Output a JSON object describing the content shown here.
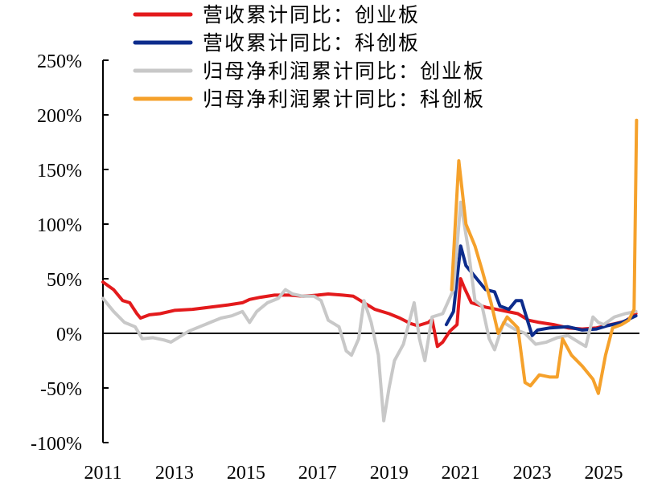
{
  "chart_data": {
    "type": "line",
    "title": "",
    "xlabel": "",
    "ylabel": "",
    "xlim": [
      2011,
      2026
    ],
    "ylim": [
      -100,
      250
    ],
    "y_unit": "%",
    "y_ticks": [
      250,
      200,
      150,
      100,
      50,
      0,
      -50,
      -100
    ],
    "y_tick_labels": [
      "250%",
      "200%",
      "150%",
      "100%",
      "50%",
      "0%",
      "-50%",
      "-100%"
    ],
    "x_ticks": [
      2011,
      2013,
      2015,
      2017,
      2019,
      2021,
      2023,
      2025
    ],
    "x_tick_labels": [
      "2011",
      "2013",
      "2015",
      "2017",
      "2019",
      "2021",
      "2023",
      "2025"
    ],
    "grid": false,
    "legend_position": "top",
    "series": [
      {
        "name": "营收累计同比：创业板",
        "color": "#e31a1c",
        "points": [
          [
            2011,
            47
          ],
          [
            2011.3,
            40
          ],
          [
            2011.55,
            30
          ],
          [
            2011.75,
            28
          ],
          [
            2011.95,
            18
          ],
          [
            2012.05,
            14
          ],
          [
            2012.3,
            17
          ],
          [
            2012.6,
            18
          ],
          [
            2013,
            21
          ],
          [
            2013.5,
            22
          ],
          [
            2014,
            24
          ],
          [
            2014.5,
            26
          ],
          [
            2014.9,
            28
          ],
          [
            2015.1,
            31
          ],
          [
            2015.4,
            33
          ],
          [
            2015.8,
            35
          ],
          [
            2016.2,
            35
          ],
          [
            2016.6,
            34
          ],
          [
            2017,
            35
          ],
          [
            2017.3,
            36
          ],
          [
            2017.7,
            35
          ],
          [
            2018,
            34
          ],
          [
            2018.3,
            28
          ],
          [
            2018.6,
            22
          ],
          [
            2019,
            18
          ],
          [
            2019.3,
            14
          ],
          [
            2019.6,
            9
          ],
          [
            2019.8,
            7
          ],
          [
            2020.1,
            10
          ],
          [
            2020.2,
            13
          ],
          [
            2020.35,
            -12
          ],
          [
            2020.5,
            -8
          ],
          [
            2020.7,
            2
          ],
          [
            2020.9,
            8
          ],
          [
            2021.0,
            50
          ],
          [
            2021.1,
            42
          ],
          [
            2021.3,
            28
          ],
          [
            2021.7,
            24
          ],
          [
            2022,
            22
          ],
          [
            2022.3,
            20
          ],
          [
            2022.6,
            18
          ],
          [
            2022.9,
            12
          ],
          [
            2023.2,
            10
          ],
          [
            2023.6,
            8
          ],
          [
            2024,
            5
          ],
          [
            2024.4,
            4
          ],
          [
            2024.8,
            5
          ],
          [
            2025.2,
            8
          ],
          [
            2025.6,
            11
          ],
          [
            2025.9,
            18
          ]
        ]
      },
      {
        "name": "营收累计同比：科创板",
        "color": "#0d2c8c",
        "points": [
          [
            2020.6,
            8
          ],
          [
            2020.8,
            20
          ],
          [
            2021.0,
            80
          ],
          [
            2021.15,
            62
          ],
          [
            2021.4,
            52
          ],
          [
            2021.7,
            40
          ],
          [
            2021.95,
            38
          ],
          [
            2022.1,
            25
          ],
          [
            2022.35,
            22
          ],
          [
            2022.55,
            30
          ],
          [
            2022.7,
            30
          ],
          [
            2022.85,
            14
          ],
          [
            2023.0,
            -2
          ],
          [
            2023.15,
            3
          ],
          [
            2023.5,
            5
          ],
          [
            2024,
            6
          ],
          [
            2024.4,
            3
          ],
          [
            2024.8,
            4
          ],
          [
            2025.1,
            7
          ],
          [
            2025.5,
            10
          ],
          [
            2025.9,
            16
          ]
        ]
      },
      {
        "name": "归母净利润累计同比：创业板",
        "color": "#c8c8c8",
        "points": [
          [
            2011,
            32
          ],
          [
            2011.3,
            20
          ],
          [
            2011.6,
            10
          ],
          [
            2011.9,
            6
          ],
          [
            2012.1,
            -5
          ],
          [
            2012.4,
            -4
          ],
          [
            2012.7,
            -6
          ],
          [
            2012.9,
            -8
          ],
          [
            2013.1,
            -4
          ],
          [
            2013.4,
            2
          ],
          [
            2013.7,
            6
          ],
          [
            2014,
            10
          ],
          [
            2014.3,
            14
          ],
          [
            2014.6,
            16
          ],
          [
            2014.9,
            20
          ],
          [
            2015.1,
            10
          ],
          [
            2015.3,
            20
          ],
          [
            2015.6,
            28
          ],
          [
            2015.9,
            32
          ],
          [
            2016.1,
            40
          ],
          [
            2016.3,
            36
          ],
          [
            2016.6,
            34
          ],
          [
            2016.9,
            34
          ],
          [
            2017.1,
            30
          ],
          [
            2017.3,
            12
          ],
          [
            2017.6,
            6
          ],
          [
            2017.8,
            -16
          ],
          [
            2017.95,
            -20
          ],
          [
            2018.15,
            -5
          ],
          [
            2018.3,
            30
          ],
          [
            2018.5,
            10
          ],
          [
            2018.7,
            -20
          ],
          [
            2018.85,
            -80
          ],
          [
            2019.0,
            -50
          ],
          [
            2019.15,
            -25
          ],
          [
            2019.4,
            -10
          ],
          [
            2019.7,
            28
          ],
          [
            2019.85,
            -5
          ],
          [
            2020.0,
            -25
          ],
          [
            2020.2,
            15
          ],
          [
            2020.5,
            18
          ],
          [
            2020.8,
            40
          ],
          [
            2021.0,
            120
          ],
          [
            2021.2,
            80
          ],
          [
            2021.4,
            30
          ],
          [
            2021.6,
            25
          ],
          [
            2021.8,
            -5
          ],
          [
            2021.95,
            -15
          ],
          [
            2022.2,
            10
          ],
          [
            2022.5,
            4
          ],
          [
            2022.8,
            0
          ],
          [
            2023.1,
            -10
          ],
          [
            2023.4,
            -8
          ],
          [
            2023.7,
            -4
          ],
          [
            2024,
            -2
          ],
          [
            2024.3,
            -8
          ],
          [
            2024.5,
            -12
          ],
          [
            2024.7,
            15
          ],
          [
            2024.85,
            10
          ],
          [
            2025.0,
            8
          ],
          [
            2025.3,
            15
          ],
          [
            2025.6,
            18
          ],
          [
            2025.9,
            20
          ]
        ]
      },
      {
        "name": "归母净利润累计同比：科创板",
        "color": "#f5a12b",
        "points": [
          [
            2020.75,
            40
          ],
          [
            2020.95,
            158
          ],
          [
            2021.15,
            100
          ],
          [
            2021.4,
            80
          ],
          [
            2021.6,
            58
          ],
          [
            2021.85,
            28
          ],
          [
            2022.05,
            0
          ],
          [
            2022.3,
            15
          ],
          [
            2022.6,
            5
          ],
          [
            2022.8,
            -45
          ],
          [
            2022.95,
            -48
          ],
          [
            2023.2,
            -38
          ],
          [
            2023.5,
            -40
          ],
          [
            2023.7,
            -40
          ],
          [
            2023.85,
            -5
          ],
          [
            2024.1,
            -20
          ],
          [
            2024.4,
            -30
          ],
          [
            2024.7,
            -42
          ],
          [
            2024.85,
            -55
          ],
          [
            2025.05,
            -20
          ],
          [
            2025.25,
            5
          ],
          [
            2025.5,
            8
          ],
          [
            2025.7,
            12
          ],
          [
            2025.85,
            22
          ],
          [
            2025.92,
            195
          ]
        ]
      }
    ]
  }
}
